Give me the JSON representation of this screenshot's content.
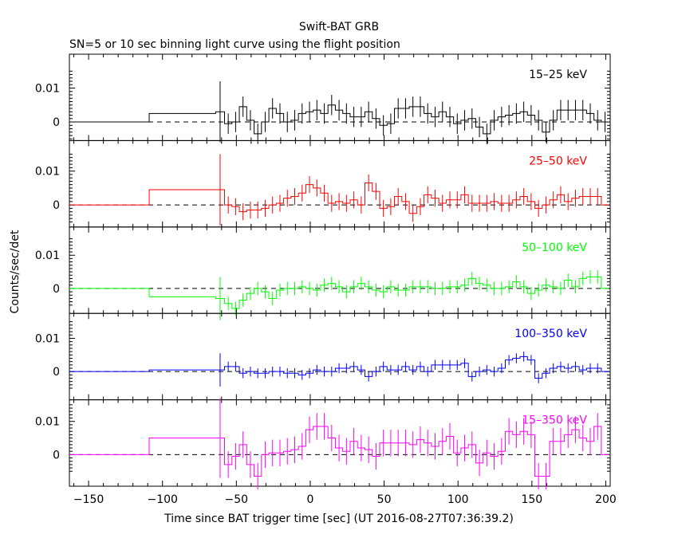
{
  "chart_data": {
    "type": "line",
    "title": "Swift-BAT GRB",
    "subtitle": "SN=5 or 10 sec binning light curve using the flight position",
    "xlabel": "Time since BAT trigger time [sec] (UT 2016-08-27T07:36:39.2)",
    "ylabel": "Counts/sec/det",
    "xlim": [
      -163,
      203
    ],
    "xticks": [
      -150,
      -100,
      -50,
      0,
      50,
      100,
      150,
      200
    ],
    "panels": [
      {
        "name": "15–25 keV",
        "color": "#000000",
        "ylim": [
          -0.0055,
          0.02
        ],
        "yticks": [
          0,
          0.01
        ],
        "yticklabels": [
          "0",
          "0.01"
        ],
        "edges": [
          -163,
          -109,
          -64,
          -58,
          -53,
          -48,
          -43,
          -38,
          -33,
          -28,
          -23,
          -18,
          -13,
          -8,
          -3,
          2,
          7,
          12,
          17,
          22,
          27,
          32,
          37,
          42,
          47,
          52,
          57,
          62,
          67,
          72,
          77,
          82,
          87,
          92,
          97,
          102,
          107,
          112,
          117,
          122,
          127,
          132,
          137,
          142,
          147,
          152,
          157,
          162,
          167,
          172,
          177,
          182,
          187,
          192,
          197,
          202
        ],
        "values": [
          0,
          0.0025,
          0.003,
          -0.0005,
          0,
          0.0045,
          0.0005,
          -0.0035,
          0,
          0.004,
          0.0025,
          0,
          0.0005,
          0.0025,
          0.003,
          0.0035,
          0.0025,
          0.005,
          0.0035,
          0.0025,
          0.0015,
          0.0015,
          0.003,
          0.001,
          -0.001,
          -0.0005,
          0.004,
          0.004,
          0.0045,
          0.0045,
          0.0025,
          0.0015,
          0.003,
          0.0015,
          -0.0005,
          0.0005,
          0.001,
          -0.0015,
          -0.0035,
          0.0005,
          0.0015,
          0.002,
          0.0025,
          0.003,
          0.002,
          0.0005,
          -0.003,
          0.0005,
          0.0035,
          0.0035,
          0.0035,
          0.0035,
          0.0025,
          0.0005,
          0
        ],
        "errors": [
          0,
          0,
          0.009,
          0.003,
          0.003,
          0.003,
          0.003,
          0.003,
          0.003,
          0.003,
          0.003,
          0.003,
          0.003,
          0.003,
          0.003,
          0.003,
          0.003,
          0.003,
          0.003,
          0.003,
          0.003,
          0.003,
          0.003,
          0.003,
          0.003,
          0.003,
          0.003,
          0.003,
          0.003,
          0.003,
          0.003,
          0.003,
          0.003,
          0.003,
          0.003,
          0.003,
          0.003,
          0.003,
          0.003,
          0.003,
          0.003,
          0.003,
          0.003,
          0.003,
          0.003,
          0.003,
          0.003,
          0.003,
          0.003,
          0.003,
          0.003,
          0.003,
          0.003,
          0.003,
          0.003
        ]
      },
      {
        "name": "25–50 keV",
        "color": "#ff0000",
        "ylim": [
          -0.0065,
          0.019
        ],
        "yticks": [
          0,
          0.01
        ],
        "yticklabels": [
          "0",
          "0.01"
        ],
        "edges": [
          -163,
          -109,
          -64,
          -58,
          -53,
          -48,
          -43,
          -38,
          -33,
          -28,
          -23,
          -18,
          -13,
          -8,
          -3,
          2,
          7,
          12,
          17,
          22,
          27,
          32,
          37,
          42,
          47,
          52,
          57,
          62,
          67,
          72,
          77,
          82,
          87,
          92,
          97,
          102,
          107,
          112,
          117,
          122,
          127,
          132,
          137,
          142,
          147,
          152,
          157,
          162,
          167,
          172,
          177,
          182,
          187,
          192,
          197,
          202
        ],
        "values": [
          0,
          0.0045,
          0.0045,
          0,
          -0.0005,
          -0.002,
          -0.0015,
          -0.0015,
          -0.001,
          0,
          0.0005,
          0.002,
          0.0025,
          0.0035,
          0.006,
          0.005,
          0.0035,
          0.0005,
          0.001,
          0.0005,
          0.0015,
          0,
          0.0065,
          0.004,
          -0.001,
          -0.0005,
          0.0025,
          0.001,
          -0.0025,
          -0.0005,
          0.003,
          0.002,
          0.0005,
          0.0015,
          0.0015,
          0.003,
          0.0005,
          0.0005,
          0.0005,
          0.001,
          0.0005,
          0.0005,
          0.0015,
          0.0025,
          0.001,
          -0.001,
          0,
          0.0015,
          0.003,
          0.001,
          0.002,
          0.0025,
          0.0025,
          0.0025,
          0
        ],
        "errors": [
          0,
          0,
          0.0105,
          0.0025,
          0.0025,
          0.0025,
          0.0025,
          0.0025,
          0.0025,
          0.0025,
          0.0025,
          0.0025,
          0.0025,
          0.0025,
          0.0025,
          0.0025,
          0.0025,
          0.0025,
          0.0025,
          0.0025,
          0.0025,
          0.0025,
          0.0025,
          0.0025,
          0.0025,
          0.0025,
          0.0025,
          0.0025,
          0.0025,
          0.0025,
          0.0025,
          0.0025,
          0.0025,
          0.0025,
          0.0025,
          0.0025,
          0.0025,
          0.0025,
          0.0025,
          0.0025,
          0.0025,
          0.0025,
          0.0025,
          0.0025,
          0.0025,
          0.0025,
          0.0025,
          0.0025,
          0.0025,
          0.0025,
          0.0025,
          0.0025,
          0.0025,
          0.0025,
          0
        ]
      },
      {
        "name": "50–100 keV",
        "color": "#00ff00",
        "ylim": [
          -0.0075,
          0.0185
        ],
        "yticks": [
          0,
          0.01
        ],
        "yticklabels": [
          "0",
          "0.01"
        ],
        "edges": [
          -163,
          -109,
          -64,
          -58,
          -53,
          -48,
          -43,
          -38,
          -33,
          -28,
          -23,
          -18,
          -13,
          -8,
          -3,
          2,
          7,
          12,
          17,
          22,
          27,
          32,
          37,
          42,
          47,
          52,
          57,
          62,
          67,
          72,
          77,
          82,
          87,
          92,
          97,
          102,
          107,
          112,
          117,
          122,
          127,
          132,
          137,
          142,
          147,
          152,
          157,
          162,
          167,
          172,
          177,
          182,
          187,
          192,
          197,
          202
        ],
        "values": [
          0,
          -0.0025,
          -0.003,
          -0.0045,
          -0.006,
          -0.0035,
          -0.0015,
          0,
          -0.001,
          -0.003,
          -0.0005,
          0,
          0,
          0.0005,
          0,
          -0.0005,
          0.001,
          0.0015,
          0.0005,
          -0.001,
          0.0005,
          0.0015,
          0.0005,
          -0.0005,
          -0.001,
          0.0005,
          -0.0005,
          -0.0005,
          0.0005,
          0.0005,
          0.0005,
          0,
          0,
          0.0005,
          0.0005,
          0.001,
          0.003,
          0.0015,
          0.001,
          0,
          0,
          0.0005,
          0.002,
          0.0005,
          -0.0015,
          -0.0005,
          0.001,
          0.0005,
          0,
          0.0025,
          0.0005,
          0.003,
          0.0035,
          0.0035,
          0
        ],
        "errors": [
          0,
          0,
          0.0065,
          0.002,
          0.002,
          0.002,
          0.002,
          0.002,
          0.002,
          0.002,
          0.002,
          0.002,
          0.002,
          0.002,
          0.002,
          0.002,
          0.002,
          0.002,
          0.002,
          0.002,
          0.002,
          0.002,
          0.002,
          0.002,
          0.002,
          0.002,
          0.002,
          0.002,
          0.002,
          0.002,
          0.002,
          0.002,
          0.002,
          0.002,
          0.002,
          0.002,
          0.002,
          0.002,
          0.002,
          0.002,
          0.002,
          0.002,
          0.002,
          0.002,
          0.002,
          0.002,
          0.002,
          0.002,
          0.002,
          0.002,
          0.002,
          0.002,
          0.002,
          0.002,
          0
        ]
      },
      {
        "name": "100–350 keV",
        "color": "#0000ff",
        "ylim": [
          -0.0085,
          0.0175
        ],
        "yticks": [
          0,
          0.01
        ],
        "yticklabels": [
          "0",
          "0.01"
        ],
        "edges": [
          -163,
          -109,
          -64,
          -58,
          -53,
          -48,
          -43,
          -38,
          -33,
          -28,
          -23,
          -18,
          -13,
          -8,
          -3,
          2,
          7,
          12,
          17,
          22,
          27,
          32,
          37,
          42,
          47,
          52,
          57,
          62,
          67,
          72,
          77,
          82,
          87,
          92,
          97,
          102,
          107,
          112,
          117,
          122,
          127,
          132,
          137,
          142,
          147,
          152,
          157,
          162,
          167,
          172,
          177,
          182,
          187,
          192,
          197,
          202
        ],
        "values": [
          0,
          0.0005,
          0.0005,
          0.0015,
          0.0015,
          -0.0005,
          0,
          -0.0005,
          -0.0005,
          0,
          0,
          -0.0005,
          -0.0005,
          -0.001,
          -0.0005,
          0.0005,
          0,
          0,
          0.001,
          0.001,
          0.0015,
          0.0005,
          -0.0015,
          0,
          0.0015,
          0.0005,
          0.0005,
          0.0015,
          0.0005,
          0.0015,
          0,
          0.002,
          0.002,
          0.002,
          0.002,
          0.0025,
          -0.0015,
          0,
          0.0005,
          0,
          0.001,
          0.0035,
          0.004,
          0.0045,
          0.0035,
          -0.002,
          -0.0005,
          0.001,
          0.0015,
          0.001,
          0.0015,
          0.0005,
          0.001,
          0.001,
          0
        ],
        "errors": [
          0,
          0,
          0.005,
          0.0015,
          0.0015,
          0.0015,
          0.0015,
          0.0015,
          0.0015,
          0.0015,
          0.0015,
          0.0015,
          0.0015,
          0.0015,
          0.0015,
          0.0015,
          0.0015,
          0.0015,
          0.0015,
          0.0015,
          0.0015,
          0.0015,
          0.0015,
          0.0015,
          0.0015,
          0.0015,
          0.0015,
          0.0015,
          0.0015,
          0.0015,
          0.0015,
          0.0015,
          0.0015,
          0.0015,
          0.0015,
          0.0015,
          0.0015,
          0.0015,
          0.0015,
          0.0015,
          0.0015,
          0.0015,
          0.0015,
          0.0015,
          0.0015,
          0.0015,
          0.0015,
          0.0015,
          0.0015,
          0.0015,
          0.0015,
          0.0015,
          0.0015,
          0.0015,
          0
        ]
      },
      {
        "name": "15–350 keV",
        "color": "#ff00ff",
        "ylim": [
          -0.0095,
          0.0165
        ],
        "yticks": [
          0,
          0.01
        ],
        "yticklabels": [
          "0",
          "0.01"
        ],
        "edges": [
          -163,
          -109,
          -64,
          -58,
          -53,
          -48,
          -43,
          -38,
          -33,
          -28,
          -23,
          -18,
          -13,
          -8,
          -3,
          2,
          7,
          12,
          17,
          22,
          27,
          32,
          37,
          42,
          47,
          52,
          57,
          62,
          67,
          72,
          77,
          82,
          87,
          92,
          97,
          102,
          107,
          112,
          117,
          122,
          127,
          132,
          137,
          142,
          147,
          152,
          157,
          162,
          167,
          172,
          177,
          182,
          187,
          192,
          197,
          202
        ],
        "values": [
          0,
          0.005,
          0.005,
          -0.003,
          -0.0005,
          0.003,
          -0.003,
          -0.0065,
          0,
          0.0005,
          0.0005,
          0.001,
          0.0015,
          0.0025,
          0.0075,
          0.0085,
          0.0085,
          0.005,
          0.002,
          0.001,
          0.004,
          0.002,
          0.0015,
          -0.0005,
          0.0035,
          0.0035,
          0.0035,
          0.0035,
          0.003,
          0.0045,
          0.0035,
          0.0025,
          0.004,
          0.0055,
          0.0005,
          0.002,
          0.003,
          -0.0025,
          0.0005,
          -0.0005,
          0.001,
          0.007,
          0.006,
          0.007,
          0.006,
          -0.0065,
          -0.0065,
          0.004,
          0.004,
          0.006,
          0.0075,
          0.005,
          0.004,
          0.0085,
          0
        ],
        "errors": [
          0,
          0,
          0.012,
          0.004,
          0.004,
          0.004,
          0.004,
          0.004,
          0.004,
          0.004,
          0.004,
          0.004,
          0.004,
          0.004,
          0.004,
          0.004,
          0.004,
          0.004,
          0.004,
          0.004,
          0.004,
          0.004,
          0.004,
          0.004,
          0.004,
          0.004,
          0.004,
          0.004,
          0.004,
          0.004,
          0.004,
          0.004,
          0.004,
          0.004,
          0.004,
          0.004,
          0.004,
          0.004,
          0.004,
          0.004,
          0.004,
          0.004,
          0.004,
          0.004,
          0.004,
          0.004,
          0.004,
          0.004,
          0.004,
          0.004,
          0.004,
          0.004,
          0.004,
          0.004,
          0
        ]
      }
    ]
  }
}
